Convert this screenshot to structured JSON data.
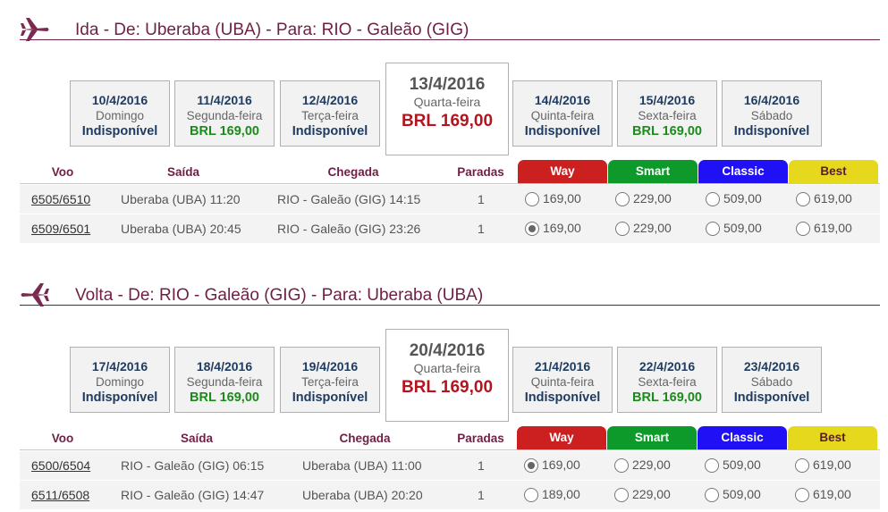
{
  "colors": {
    "section_title": "#6e1f45",
    "way": "#cc1f1f",
    "smart": "#0e9a2b",
    "classic": "#1f10f5",
    "best": "#e6d81c",
    "unavailable": "#1f3c60",
    "price_green": "#1c8a1c",
    "price_red": "#b3141e"
  },
  "outbound": {
    "title": "Ida - De: Uberaba (UBA) - Para: RIO - Galeão (GIG)",
    "icon": "plane-icon",
    "days": [
      {
        "date": "10/4/2016",
        "weekday": "Domingo",
        "price": "Indisponível",
        "available": false,
        "selected": false
      },
      {
        "date": "11/4/2016",
        "weekday": "Segunda-feira",
        "price": "BRL 169,00",
        "available": true,
        "selected": false
      },
      {
        "date": "12/4/2016",
        "weekday": "Terça-feira",
        "price": "Indisponível",
        "available": false,
        "selected": false
      },
      {
        "date": "13/4/2016",
        "weekday": "Quarta-feira",
        "price": "BRL 169,00",
        "available": true,
        "selected": true
      },
      {
        "date": "14/4/2016",
        "weekday": "Quinta-feira",
        "price": "Indisponível",
        "available": false,
        "selected": false
      },
      {
        "date": "15/4/2016",
        "weekday": "Sexta-feira",
        "price": "BRL 169,00",
        "available": true,
        "selected": false
      },
      {
        "date": "16/4/2016",
        "weekday": "Sábado",
        "price": "Indisponível",
        "available": false,
        "selected": false
      }
    ],
    "headers": {
      "flight": "Voo",
      "departure": "Saída",
      "arrival": "Chegada",
      "stops": "Paradas",
      "way": "Way",
      "smart": "Smart",
      "classic": "Classic",
      "best": "Best"
    },
    "flights": [
      {
        "number": "6505/6510",
        "departure": "Uberaba (UBA) 11:20",
        "arrival": "RIO - Galeão (GIG) 14:15",
        "stops": "1",
        "way": "169,00",
        "smart": "229,00",
        "classic": "509,00",
        "best": "619,00",
        "selected": "none"
      },
      {
        "number": "6509/6501",
        "departure": "Uberaba (UBA) 20:45",
        "arrival": "RIO - Galeão (GIG) 23:26",
        "stops": "1",
        "way": "169,00",
        "smart": "229,00",
        "classic": "509,00",
        "best": "619,00",
        "selected": "way"
      }
    ]
  },
  "return": {
    "title": "Volta - De: RIO - Galeão (GIG) - Para: Uberaba (UBA)",
    "icon": "plane-icon",
    "days": [
      {
        "date": "17/4/2016",
        "weekday": "Domingo",
        "price": "Indisponível",
        "available": false,
        "selected": false
      },
      {
        "date": "18/4/2016",
        "weekday": "Segunda-feira",
        "price": "BRL 169,00",
        "available": true,
        "selected": false
      },
      {
        "date": "19/4/2016",
        "weekday": "Terça-feira",
        "price": "Indisponível",
        "available": false,
        "selected": false
      },
      {
        "date": "20/4/2016",
        "weekday": "Quarta-feira",
        "price": "BRL 169,00",
        "available": true,
        "selected": true
      },
      {
        "date": "21/4/2016",
        "weekday": "Quinta-feira",
        "price": "Indisponível",
        "available": false,
        "selected": false
      },
      {
        "date": "22/4/2016",
        "weekday": "Sexta-feira",
        "price": "BRL 169,00",
        "available": true,
        "selected": false
      },
      {
        "date": "23/4/2016",
        "weekday": "Sábado",
        "price": "Indisponível",
        "available": false,
        "selected": false
      }
    ],
    "headers": {
      "flight": "Voo",
      "departure": "Saída",
      "arrival": "Chegada",
      "stops": "Paradas",
      "way": "Way",
      "smart": "Smart",
      "classic": "Classic",
      "best": "Best"
    },
    "flights": [
      {
        "number": "6500/6504",
        "departure": "RIO - Galeão (GIG) 06:15",
        "arrival": "Uberaba (UBA) 11:00",
        "stops": "1",
        "way": "169,00",
        "smart": "229,00",
        "classic": "509,00",
        "best": "619,00",
        "selected": "way"
      },
      {
        "number": "6511/6508",
        "departure": "RIO - Galeão (GIG) 14:47",
        "arrival": "Uberaba (UBA) 20:20",
        "stops": "1",
        "way": "189,00",
        "smart": "229,00",
        "classic": "509,00",
        "best": "619,00",
        "selected": "none"
      }
    ]
  }
}
